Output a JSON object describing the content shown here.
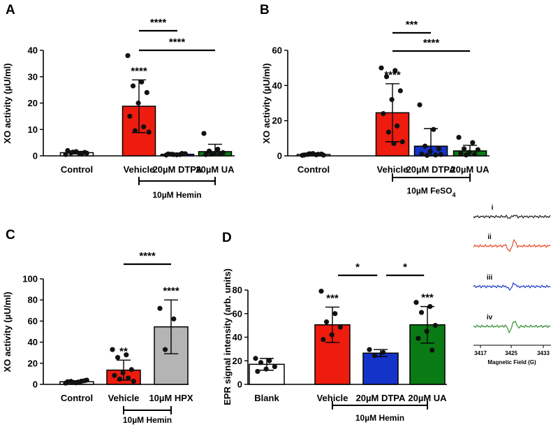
{
  "figure": {
    "background": "#ffffff"
  },
  "chart_data": [
    {
      "id": "A",
      "panel_label": "A",
      "type": "bar",
      "ylabel": "XO activity (µU/ml)",
      "ylim": [
        0,
        40
      ],
      "yticks": [
        0,
        10,
        20,
        30,
        40
      ],
      "categories": [
        "Control",
        "Vehicle",
        "20µM DTPA",
        "20µM UA"
      ],
      "values": [
        1.2,
        18.8,
        0.6,
        1.6
      ],
      "errors": [
        0.5,
        10.0,
        0.4,
        2.8
      ],
      "colors": [
        "#ffffff",
        "#ed1c0e",
        "#1433c9",
        "#0a7a15"
      ],
      "points": [
        [
          0.5,
          0.9,
          1.1,
          1.3,
          1.6,
          2.0,
          0.7,
          1.4,
          1.0
        ],
        [
          38,
          28,
          26.5,
          24,
          20,
          15,
          11,
          9.5,
          9
        ],
        [
          0.3,
          0.5,
          0.6,
          0.8,
          0.4,
          0.7,
          0.9,
          0.5
        ],
        [
          8.5,
          2.5,
          1.8,
          1.2,
          0.8,
          0.5,
          0.9,
          1.0
        ]
      ],
      "significance_above_bars": [
        "",
        "****",
        "",
        ""
      ],
      "comparisons": [
        {
          "from": 1,
          "to": 2,
          "label": "****"
        },
        {
          "from": 1,
          "to": 3,
          "label": "****"
        }
      ],
      "treatment_group": {
        "label": "10µM Hemin",
        "sub": "",
        "from": 1,
        "to": 3
      }
    },
    {
      "id": "B",
      "panel_label": "B",
      "type": "bar",
      "ylabel": "XO activity (µU/ml)",
      "ylim": [
        0,
        60
      ],
      "yticks": [
        0,
        20,
        40,
        60
      ],
      "categories": [
        "Control",
        "Vehicle",
        "20µM DTPA",
        "20µM UA"
      ],
      "values": [
        0.8,
        24.5,
        5.5,
        2.8
      ],
      "errors": [
        0.5,
        16.5,
        10.0,
        3.2
      ],
      "colors": [
        "#ffffff",
        "#ed1c0e",
        "#1433c9",
        "#0a7a15"
      ],
      "points": [
        [
          0.3,
          0.6,
          0.8,
          1.0,
          1.3,
          0.5,
          0.9,
          1.2,
          0.4
        ],
        [
          50,
          48.5,
          45,
          37,
          32,
          24,
          17,
          13.5,
          8,
          7
        ],
        [
          29,
          15,
          5.5,
          4,
          2.5,
          1,
          0.5,
          0.3,
          0.8
        ],
        [
          10.5,
          7.5,
          4,
          3.5,
          2,
          1.5,
          1,
          0.5
        ]
      ],
      "significance_above_bars": [
        "",
        "****",
        "",
        ""
      ],
      "comparisons": [
        {
          "from": 1,
          "to": 2,
          "label": "***"
        },
        {
          "from": 1,
          "to": 3,
          "label": "****"
        }
      ],
      "treatment_group": {
        "label": "10µM FeSO",
        "sub": "4",
        "from": 1,
        "to": 3
      }
    },
    {
      "id": "C",
      "panel_label": "C",
      "type": "bar",
      "ylabel": "XO activity (µU/ml)",
      "ylim": [
        0,
        100
      ],
      "yticks": [
        0,
        20,
        40,
        60,
        80,
        100
      ],
      "categories": [
        "Control",
        "Vehicle",
        "10µM HPX"
      ],
      "values": [
        2.5,
        13.5,
        54.5
      ],
      "errors": [
        1.0,
        9.5,
        25.5
      ],
      "colors": [
        "#ffffff",
        "#ed1c0e",
        "#b4b4b4"
      ],
      "points": [
        [
          1.2,
          2.0,
          2.8,
          3.5,
          1.5,
          2.5,
          3.0,
          1.8,
          4.0,
          2.2
        ],
        [
          33,
          28,
          25.5,
          14,
          11,
          8.5,
          6,
          5,
          3
        ],
        [
          72,
          62,
          33
        ]
      ],
      "significance_above_bars": [
        "",
        "**",
        "****"
      ],
      "comparisons": [
        {
          "from": 1,
          "to": 2,
          "label": "****"
        }
      ],
      "treatment_group": {
        "label": "10µM Hemin",
        "sub": "",
        "from": 1,
        "to": 2
      }
    },
    {
      "id": "D",
      "panel_label": "D",
      "type": "bar",
      "ylabel": "EPR signal intensity (arb. units)",
      "ylim": [
        0,
        80
      ],
      "yticks": [
        0,
        20,
        40,
        60,
        80
      ],
      "categories": [
        "Blank",
        "Vehicle",
        "20µM DTPA",
        "20µM UA"
      ],
      "values": [
        17,
        50.5,
        26.5,
        50.5
      ],
      "errors": [
        5.0,
        15.0,
        3.0,
        15.5
      ],
      "colors": [
        "#ffffff",
        "#ed1c0e",
        "#1433c9",
        "#0a7a15"
      ],
      "points": [
        [
          22,
          20,
          18.5,
          15,
          13,
          11
        ],
        [
          79,
          60,
          53,
          48.5,
          42,
          38
        ],
        [
          29.5,
          27,
          24.5
        ],
        [
          69.5,
          66,
          61,
          50,
          45,
          39,
          29
        ]
      ],
      "significance_above_bars": [
        "",
        "***",
        "",
        "***"
      ],
      "comparisons": [
        {
          "from": 1,
          "to": 2,
          "label": "*"
        },
        {
          "from": 2,
          "to": 3,
          "label": "*"
        }
      ],
      "treatment_group": {
        "label": "10µM Hemin",
        "sub": "",
        "from": 1,
        "to": 3
      }
    }
  ],
  "epr_spectra": {
    "type": "line",
    "xlabel": "Magnetic Field (G)",
    "xticks": [
      3417,
      3425,
      3433
    ],
    "traces": [
      {
        "label": "i",
        "color": "#111111",
        "amplitude": 0.25
      },
      {
        "label": "ii",
        "color": "#e8401e",
        "amplitude": 1.0
      },
      {
        "label": "iii",
        "color": "#1433c9",
        "amplitude": 0.55
      },
      {
        "label": "iv",
        "color": "#2e8a28",
        "amplitude": 1.0
      }
    ]
  }
}
